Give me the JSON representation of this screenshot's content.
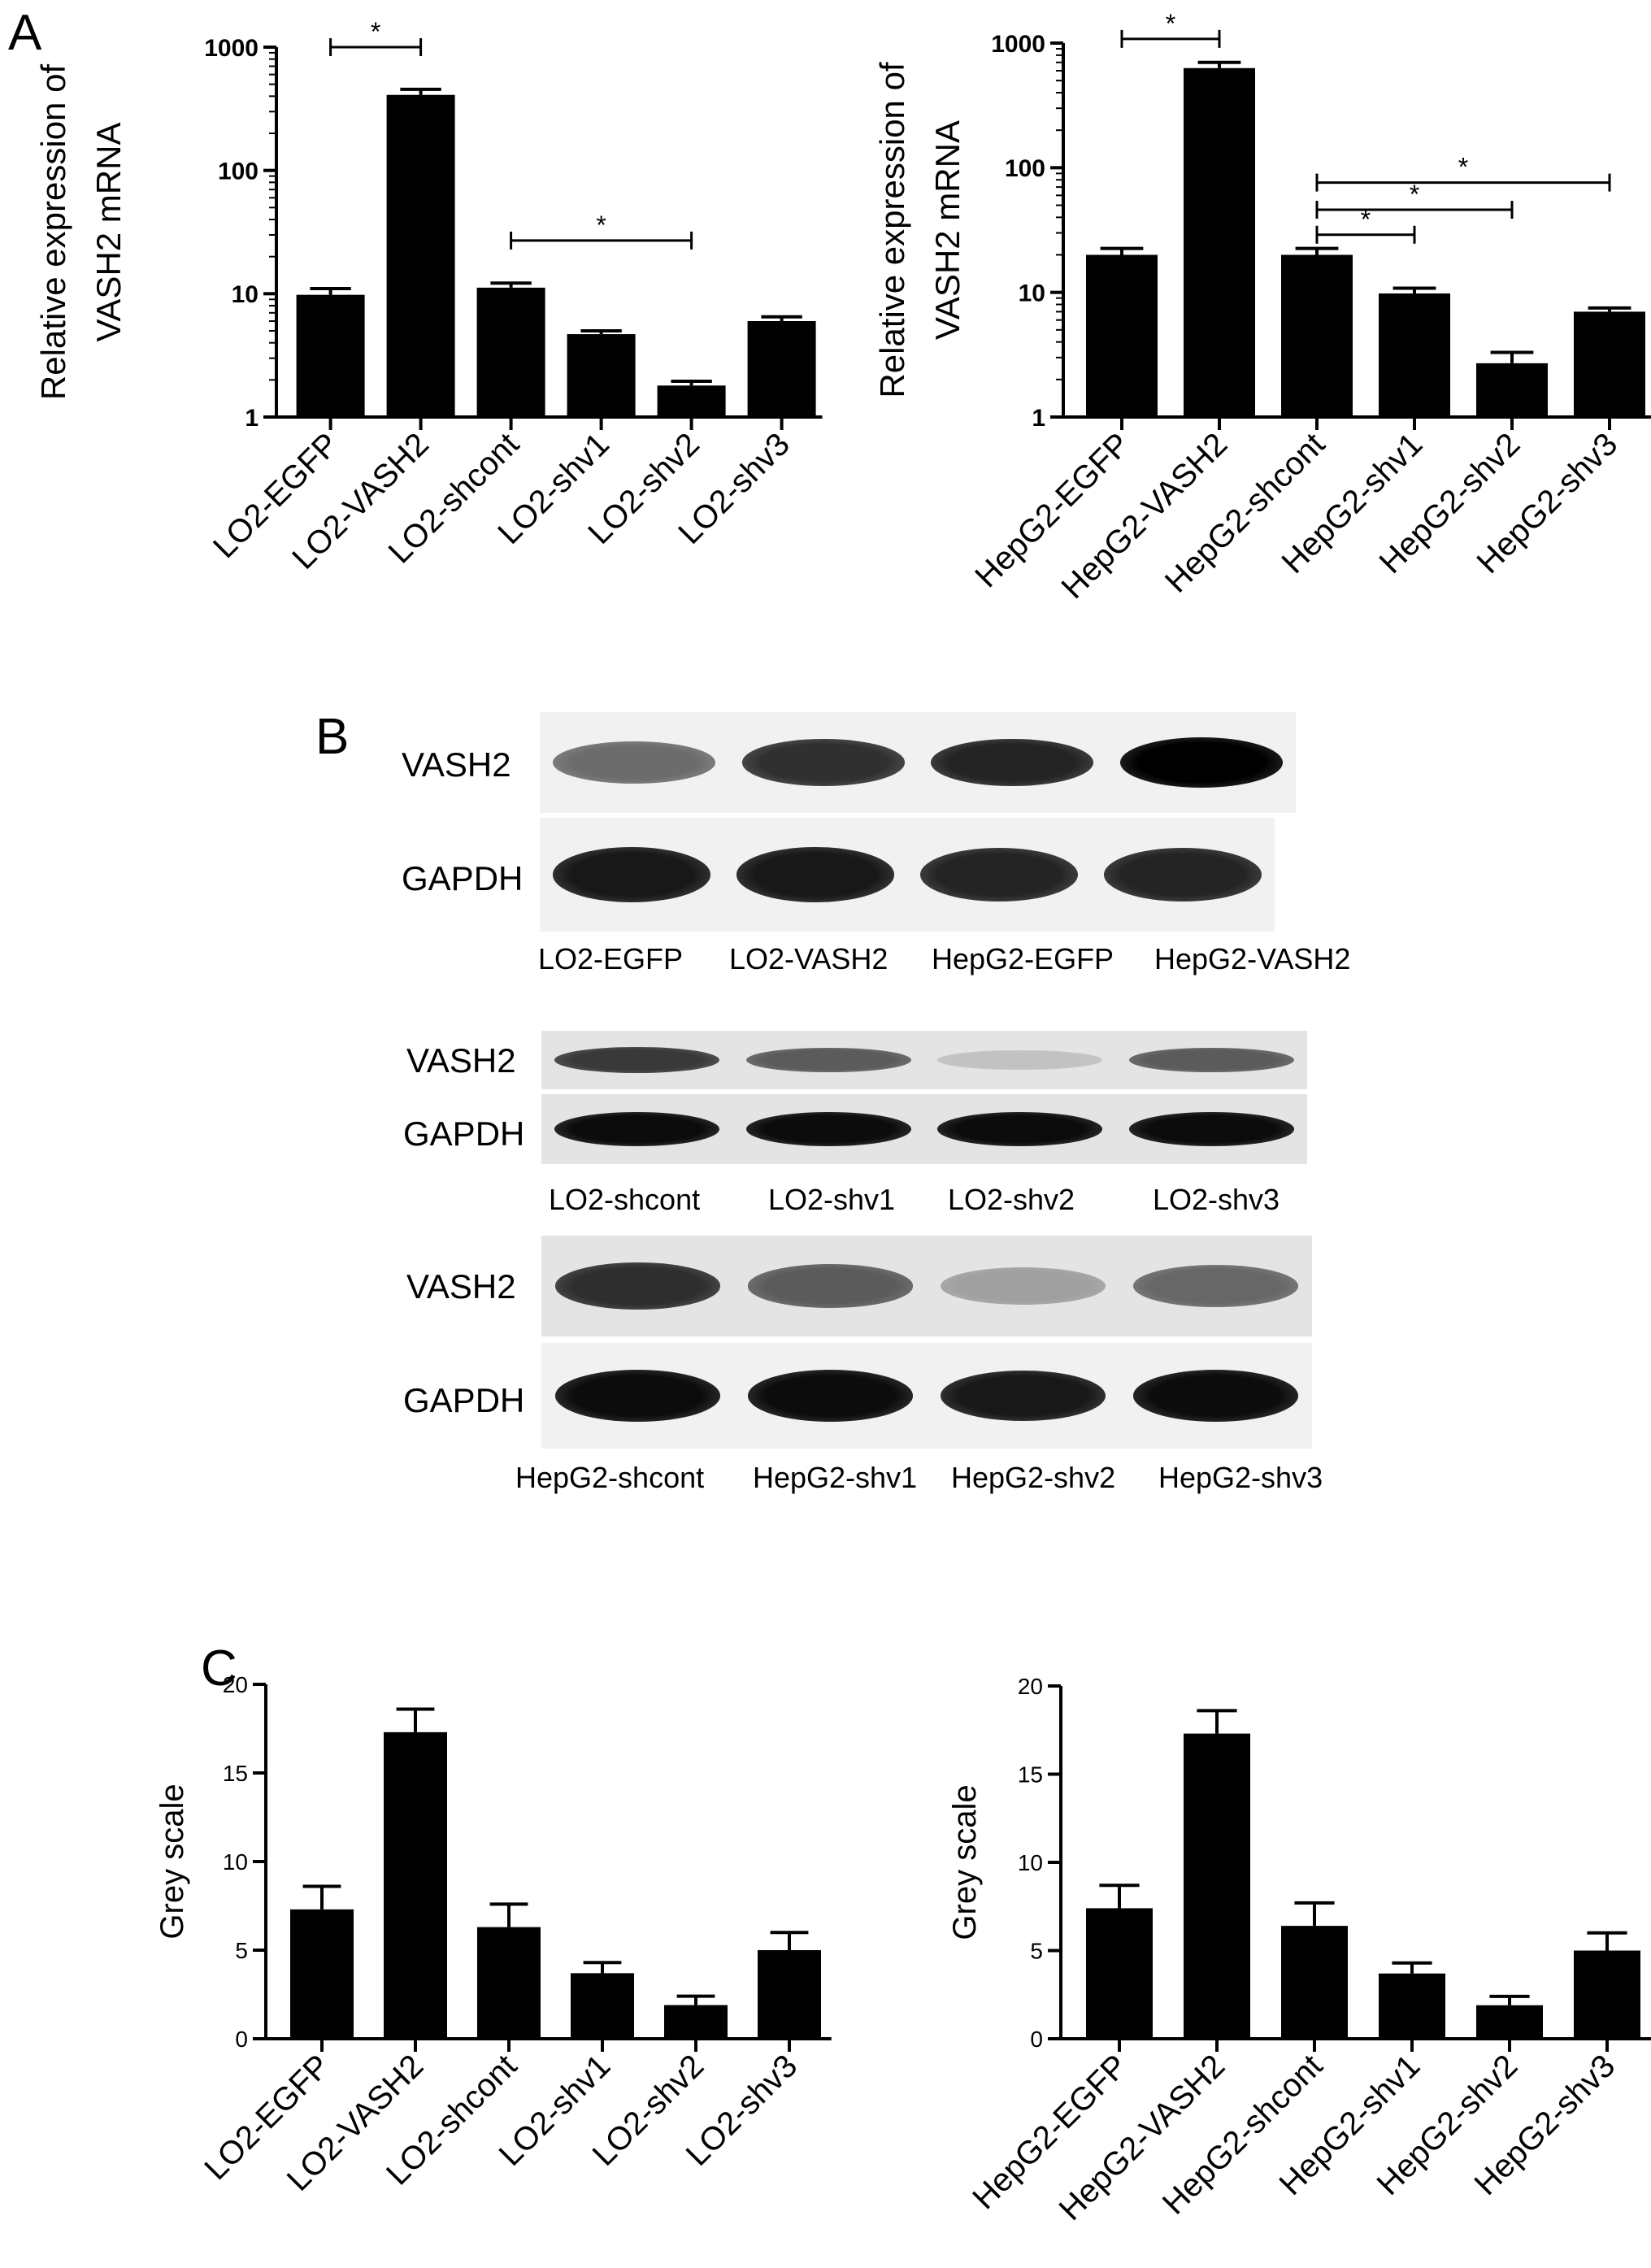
{
  "panels": {
    "a": "A",
    "b": "B",
    "c": "C"
  },
  "chart_data": [
    {
      "id": "A-left",
      "type": "bar",
      "yscale": "log",
      "ylim": [
        1,
        1000
      ],
      "yticks": [
        1,
        10,
        100,
        1000
      ],
      "ylabel_lines": [
        "Relative expression of",
        "VASH2 mRNA"
      ],
      "xlabel": "",
      "categories": [
        "LO2-EGFP",
        "LO2-VASH2",
        "LO2-shcont",
        "LO2-shv1",
        "LO2-shv2",
        "LO2-shv3"
      ],
      "series": [
        {
          "values": [
            9.8,
            410,
            11.2,
            4.7,
            1.8,
            6.0
          ],
          "errors": [
            1.2,
            45,
            1.0,
            0.3,
            0.15,
            0.5
          ]
        }
      ],
      "significance": [
        {
          "from": 0,
          "to": 1,
          "label": "*",
          "level": 1000
        },
        {
          "from": 2,
          "to": 4,
          "label": "*",
          "level": 27
        }
      ]
    },
    {
      "id": "A-right",
      "type": "bar",
      "yscale": "log",
      "ylim": [
        1,
        1000
      ],
      "yticks": [
        1,
        10,
        100,
        1000
      ],
      "ylabel_lines": [
        "Relative expression of",
        "VASH2 mRNA"
      ],
      "xlabel": "",
      "categories": [
        "HepG2-EGFP",
        "HepG2-VASH2",
        "HepG2-shcont",
        "HepG2-shv1",
        "HepG2-shv2",
        "HepG2-shv3"
      ],
      "series": [
        {
          "values": [
            20,
            630,
            20,
            9.8,
            2.7,
            7.0
          ],
          "errors": [
            2.5,
            70,
            2.5,
            1.0,
            0.6,
            0.5
          ]
        }
      ],
      "significance": [
        {
          "from": 0,
          "to": 1,
          "label": "*",
          "level": 1080
        },
        {
          "from": 2,
          "to": 5,
          "label": "*",
          "level": 76
        },
        {
          "from": 2,
          "to": 4,
          "label": "*",
          "level": 46
        },
        {
          "from": 2,
          "to": 3,
          "label": "*",
          "level": 29
        }
      ]
    },
    {
      "id": "C-left",
      "type": "bar",
      "yscale": "linear",
      "ylim": [
        0,
        20
      ],
      "yticks": [
        0,
        5,
        10,
        15,
        20
      ],
      "ylabel_lines": [
        "Grey scale"
      ],
      "xlabel": "",
      "categories": [
        "LO2-EGFP",
        "LO2-VASH2",
        "LO2-shcont",
        "LO2-shv1",
        "LO2-shv2",
        "LO2-shv3"
      ],
      "series": [
        {
          "values": [
            7.3,
            17.3,
            6.3,
            3.7,
            1.9,
            5.0
          ],
          "errors": [
            1.3,
            1.3,
            1.3,
            0.6,
            0.5,
            1.0
          ]
        }
      ],
      "significance": []
    },
    {
      "id": "C-right",
      "type": "bar",
      "yscale": "linear",
      "ylim": [
        0,
        20
      ],
      "yticks": [
        0,
        5,
        10,
        15,
        20
      ],
      "ylabel_lines": [
        "Grey scale"
      ],
      "xlabel": "",
      "categories": [
        "HepG2-EGFP",
        "HepG2-VASH2",
        "HepG2-shcont",
        "HepG2-shv1",
        "HepG2-shv2",
        "HepG2-shv3"
      ],
      "series": [
        {
          "values": [
            7.4,
            17.3,
            6.4,
            3.7,
            1.9,
            5.0
          ],
          "errors": [
            1.3,
            1.3,
            1.3,
            0.6,
            0.5,
            1.0
          ]
        }
      ],
      "significance": []
    }
  ],
  "western_blots": [
    {
      "rows": [
        {
          "label": "VASH2",
          "intensity": [
            0.55,
            0.8,
            0.85,
            1.0
          ]
        },
        {
          "label": "GAPDH",
          "intensity": [
            0.9,
            0.9,
            0.85,
            0.85
          ]
        }
      ],
      "lanes": [
        "LO2-EGFP",
        "LO2-VASH2",
        "HepG2-EGFP",
        "HepG2-VASH2"
      ]
    },
    {
      "rows": [
        {
          "label": "VASH2",
          "intensity": [
            0.75,
            0.6,
            0.15,
            0.6
          ]
        },
        {
          "label": "GAPDH",
          "intensity": [
            0.95,
            0.95,
            0.95,
            0.95
          ]
        }
      ],
      "lanes": [
        "LO2-shcont",
        "LO2-shv1",
        "LO2-shv2",
        "LO2-shv3"
      ]
    },
    {
      "rows": [
        {
          "label": "VASH2",
          "intensity": [
            0.8,
            0.6,
            0.3,
            0.55
          ]
        },
        {
          "label": "GAPDH",
          "intensity": [
            0.95,
            0.95,
            0.9,
            0.95
          ]
        }
      ],
      "lanes": [
        "HepG2-shcont",
        "HepG2-shv1",
        "HepG2-shv2",
        "HepG2-shv3"
      ]
    }
  ]
}
